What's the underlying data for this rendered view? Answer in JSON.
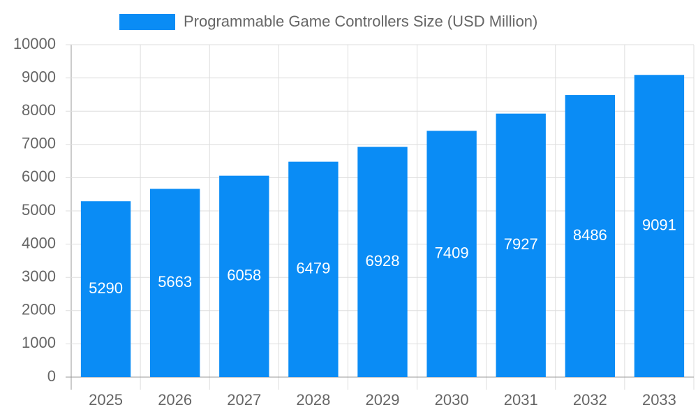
{
  "chart_data": {
    "type": "bar",
    "categories": [
      "2025",
      "2026",
      "2027",
      "2028",
      "2029",
      "2030",
      "2031",
      "2032",
      "2033"
    ],
    "series": [
      {
        "name": "Programmable Game Controllers Size (USD Million)",
        "color": "#0a8cf5",
        "values": [
          5290,
          5663,
          6058,
          6479,
          6928,
          7409,
          7927,
          8486,
          9091
        ]
      }
    ],
    "ylim": [
      0,
      10000
    ],
    "yticks": [
      0,
      1000,
      2000,
      3000,
      4000,
      5000,
      6000,
      7000,
      8000,
      9000,
      10000
    ],
    "grid": true,
    "legend": "top",
    "data_labels": true
  }
}
